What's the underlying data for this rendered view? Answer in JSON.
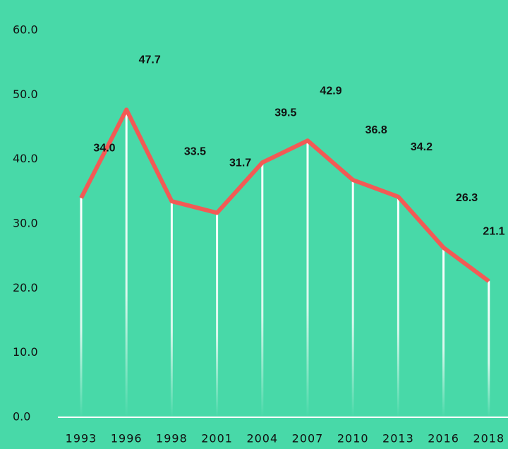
{
  "chart_data": {
    "type": "line",
    "categories": [
      "1993",
      "1996",
      "1998",
      "2001",
      "2004",
      "2007",
      "2010",
      "2013",
      "2016",
      "2018"
    ],
    "series": [
      {
        "color": "#f25a55",
        "values": [
          34.0,
          47.7,
          33.5,
          31.7,
          39.5,
          42.9,
          36.8,
          34.2,
          26.3,
          21.1
        ],
        "value_labels": [
          "34.0",
          "47.7",
          "33.5",
          "31.7",
          "39.5",
          "42.9",
          "36.8",
          "34.2",
          "26.3",
          "21.1"
        ]
      }
    ],
    "ylim": [
      0,
      60
    ],
    "yticks": [
      {
        "value": 0,
        "label": "0.0"
      },
      {
        "value": 10,
        "label": "10.0"
      },
      {
        "value": 20,
        "label": "20.0"
      },
      {
        "value": 30,
        "label": "30.0"
      },
      {
        "value": 40,
        "label": "40.0"
      },
      {
        "value": 50,
        "label": "50.0"
      },
      {
        "value": 60,
        "label": "60.0"
      }
    ],
    "background": "#48d9a8",
    "drop_lines": true,
    "grid": false
  }
}
